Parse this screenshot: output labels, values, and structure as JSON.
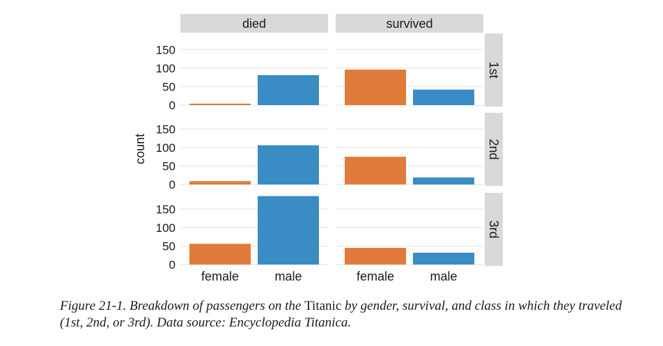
{
  "chart_data": {
    "type": "bar",
    "facet_columns": [
      "died",
      "survived"
    ],
    "facet_rows": [
      "1st",
      "2nd",
      "3rd"
    ],
    "categories": [
      "female",
      "male"
    ],
    "ylabel": "count",
    "ylim": [
      0,
      190
    ],
    "yticks": [
      "0",
      "50",
      "100",
      "150"
    ],
    "grid": true,
    "colors": {
      "female": "#e07b39",
      "male": "#3a8cc4",
      "strip_bg": "#d9d9d9"
    },
    "panels": [
      {
        "row": "1st",
        "column": "died",
        "values": [
          4,
          81
        ]
      },
      {
        "row": "1st",
        "column": "survived",
        "values": [
          96,
          42
        ]
      },
      {
        "row": "2nd",
        "column": "died",
        "values": [
          9,
          106
        ]
      },
      {
        "row": "2nd",
        "column": "survived",
        "values": [
          75,
          19
        ]
      },
      {
        "row": "3rd",
        "column": "died",
        "values": [
          56,
          185
        ]
      },
      {
        "row": "3rd",
        "column": "survived",
        "values": [
          45,
          32
        ]
      }
    ]
  },
  "caption": {
    "prefix": "Figure 21-1. Breakdown of passengers on the ",
    "emphasis": "Titanic",
    "suffix": " by gender, survival, and class in which they traveled (1st, 2nd, or 3rd). Data source: Encyclopedia Titanica."
  }
}
